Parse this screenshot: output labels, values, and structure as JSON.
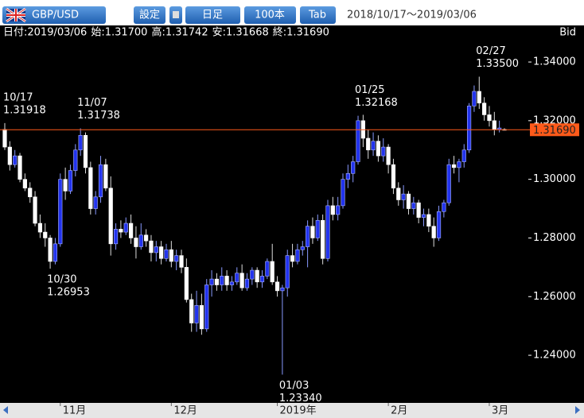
{
  "toolbar": {
    "symbol": "GBP/USD",
    "buttons": [
      "設定",
      "日足",
      "100本",
      "Tab"
    ],
    "range": "2018/10/17～2019/03/06"
  },
  "info": [
    "日付:2019/03/06",
    "始:1.31700",
    "高:1.31742",
    "安:1.31668",
    "終:1.31690"
  ],
  "price_type": "Bid",
  "chart_data": {
    "type": "candlestick",
    "up_color": "#2233ee",
    "down_color": "#ffffff",
    "candles": [
      [
        1.317,
        1.31918,
        1.31,
        1.311
      ],
      [
        1.311,
        1.313,
        1.303,
        1.305
      ],
      [
        1.305,
        1.31,
        1.304,
        1.308
      ],
      [
        1.308,
        1.309,
        1.299,
        1.3
      ],
      [
        1.3,
        1.302,
        1.296,
        1.297
      ],
      [
        1.297,
        1.299,
        1.292,
        1.294
      ],
      [
        1.294,
        1.296,
        1.284,
        1.285
      ],
      [
        1.285,
        1.288,
        1.28,
        1.282
      ],
      [
        1.282,
        1.285,
        1.277,
        1.28
      ],
      [
        1.28,
        1.281,
        1.26953,
        1.272
      ],
      [
        1.272,
        1.28,
        1.271,
        1.278
      ],
      [
        1.278,
        1.302,
        1.277,
        1.3
      ],
      [
        1.3,
        1.304,
        1.293,
        1.296
      ],
      [
        1.296,
        1.305,
        1.295,
        1.303
      ],
      [
        1.303,
        1.312,
        1.301,
        1.31
      ],
      [
        1.31,
        1.31738,
        1.308,
        1.315
      ],
      [
        1.315,
        1.316,
        1.302,
        1.304
      ],
      [
        1.304,
        1.306,
        1.288,
        1.29
      ],
      [
        1.29,
        1.296,
        1.288,
        1.294
      ],
      [
        1.294,
        1.308,
        1.292,
        1.305
      ],
      [
        1.305,
        1.307,
        1.296,
        1.297
      ],
      [
        1.297,
        1.301,
        1.274,
        1.278
      ],
      [
        1.278,
        1.285,
        1.276,
        1.283
      ],
      [
        1.283,
        1.286,
        1.28,
        1.282
      ],
      [
        1.282,
        1.287,
        1.281,
        1.285
      ],
      [
        1.285,
        1.288,
        1.278,
        1.28
      ],
      [
        1.28,
        1.284,
        1.273,
        1.277
      ],
      [
        1.277,
        1.285,
        1.276,
        1.281
      ],
      [
        1.281,
        1.283,
        1.277,
        1.279
      ],
      [
        1.279,
        1.281,
        1.272,
        1.275
      ],
      [
        1.275,
        1.279,
        1.272,
        1.277
      ],
      [
        1.277,
        1.279,
        1.271,
        1.273
      ],
      [
        1.273,
        1.278,
        1.272,
        1.276
      ],
      [
        1.276,
        1.279,
        1.27,
        1.272
      ],
      [
        1.272,
        1.276,
        1.269,
        1.274
      ],
      [
        1.274,
        1.276,
        1.268,
        1.27
      ],
      [
        1.27,
        1.273,
        1.258,
        1.259
      ],
      [
        1.259,
        1.261,
        1.248,
        1.251
      ],
      [
        1.251,
        1.262,
        1.248,
        1.257
      ],
      [
        1.257,
        1.261,
        1.247,
        1.249
      ],
      [
        1.249,
        1.266,
        1.248,
        1.264
      ],
      [
        1.264,
        1.269,
        1.26,
        1.266
      ],
      [
        1.266,
        1.268,
        1.262,
        1.264
      ],
      [
        1.264,
        1.27,
        1.262,
        1.267
      ],
      [
        1.267,
        1.269,
        1.262,
        1.264
      ],
      [
        1.264,
        1.267,
        1.262,
        1.265
      ],
      [
        1.265,
        1.27,
        1.264,
        1.268
      ],
      [
        1.268,
        1.271,
        1.262,
        1.263
      ],
      [
        1.263,
        1.268,
        1.262,
        1.266
      ],
      [
        1.266,
        1.27,
        1.264,
        1.269
      ],
      [
        1.269,
        1.27,
        1.263,
        1.265
      ],
      [
        1.265,
        1.269,
        1.263,
        1.267
      ],
      [
        1.267,
        1.273,
        1.266,
        1.272
      ],
      [
        1.272,
        1.278,
        1.264,
        1.265
      ],
      [
        1.265,
        1.267,
        1.26,
        1.262
      ],
      [
        1.262,
        1.264,
        1.2334,
        1.263
      ],
      [
        1.263,
        1.276,
        1.26,
        1.274
      ],
      [
        1.274,
        1.278,
        1.27,
        1.272
      ],
      [
        1.272,
        1.278,
        1.271,
        1.276
      ],
      [
        1.276,
        1.279,
        1.274,
        1.277
      ],
      [
        1.277,
        1.286,
        1.27,
        1.284
      ],
      [
        1.284,
        1.287,
        1.278,
        1.28
      ],
      [
        1.28,
        1.288,
        1.279,
        1.286
      ],
      [
        1.286,
        1.288,
        1.271,
        1.273
      ],
      [
        1.273,
        1.293,
        1.272,
        1.291
      ],
      [
        1.291,
        1.294,
        1.286,
        1.288
      ],
      [
        1.288,
        1.294,
        1.286,
        1.291
      ],
      [
        1.291,
        1.302,
        1.29,
        1.3
      ],
      [
        1.3,
        1.305,
        1.297,
        1.302
      ],
      [
        1.302,
        1.308,
        1.299,
        1.306
      ],
      [
        1.306,
        1.32168,
        1.305,
        1.32
      ],
      [
        1.32,
        1.322,
        1.311,
        1.314
      ],
      [
        1.314,
        1.317,
        1.307,
        1.31
      ],
      [
        1.31,
        1.316,
        1.308,
        1.313
      ],
      [
        1.313,
        1.315,
        1.306,
        1.308
      ],
      [
        1.308,
        1.314,
        1.306,
        1.311
      ],
      [
        1.311,
        1.312,
        1.302,
        1.305
      ],
      [
        1.305,
        1.307,
        1.295,
        1.297
      ],
      [
        1.297,
        1.299,
        1.291,
        1.293
      ],
      [
        1.293,
        1.298,
        1.29,
        1.295
      ],
      [
        1.295,
        1.296,
        1.288,
        1.29
      ],
      [
        1.29,
        1.294,
        1.288,
        1.292
      ],
      [
        1.292,
        1.293,
        1.285,
        1.287
      ],
      [
        1.287,
        1.29,
        1.284,
        1.288
      ],
      [
        1.288,
        1.29,
        1.282,
        1.284
      ],
      [
        1.284,
        1.287,
        1.277,
        1.28
      ],
      [
        1.28,
        1.291,
        1.279,
        1.289
      ],
      [
        1.289,
        1.293,
        1.287,
        1.292
      ],
      [
        1.292,
        1.307,
        1.291,
        1.305
      ],
      [
        1.305,
        1.308,
        1.302,
        1.304
      ],
      [
        1.304,
        1.307,
        1.299,
        1.306
      ],
      [
        1.306,
        1.312,
        1.304,
        1.31
      ],
      [
        1.31,
        1.326,
        1.309,
        1.325
      ],
      [
        1.325,
        1.332,
        1.323,
        1.33
      ],
      [
        1.33,
        1.335,
        1.324,
        1.326
      ],
      [
        1.326,
        1.328,
        1.32,
        1.322
      ],
      [
        1.322,
        1.325,
        1.318,
        1.32
      ],
      [
        1.32,
        1.323,
        1.315,
        1.317
      ],
      [
        1.317,
        1.32,
        1.316,
        1.3175
      ],
      [
        1.317,
        1.31742,
        1.31668,
        1.3169
      ]
    ],
    "xlim": [
      0,
      99
    ],
    "xticks": [
      {
        "value": 11,
        "label": "11月"
      },
      {
        "value": 33,
        "label": "12月"
      },
      {
        "value": 54,
        "label": "2019年"
      },
      {
        "value": 76,
        "label": "2月"
      },
      {
        "value": 96,
        "label": "3月"
      }
    ],
    "ylim": [
      1.2243,
      1.3476
    ],
    "yticks": [
      {
        "value": 1.24,
        "label": "1.24000"
      },
      {
        "value": 1.26,
        "label": "1.26000"
      },
      {
        "value": 1.28,
        "label": "1.28000"
      },
      {
        "value": 1.3,
        "label": "1.30000"
      },
      {
        "value": 1.32,
        "label": "1.32000"
      },
      {
        "value": 1.34,
        "label": "1.34000"
      }
    ],
    "annotations": [
      {
        "x": 0,
        "date": "10/17",
        "value": 1.31918,
        "label": "1.31918"
      },
      {
        "x": 9,
        "date": "10/30",
        "value": 1.26953,
        "label": "1.26953"
      },
      {
        "x": 15,
        "date": "11/07",
        "value": 1.31738,
        "label": "1.31738"
      },
      {
        "x": 55,
        "date": "01/03",
        "value": 1.2334,
        "label": "1.23340"
      },
      {
        "x": 70,
        "date": "01/25",
        "value": 1.32168,
        "label": "1.32168"
      },
      {
        "x": 94,
        "date": "02/27",
        "value": 1.335,
        "label": "1.33500"
      }
    ],
    "current": {
      "value": 1.3169,
      "label": "1.31690",
      "color": "#ff5a1a"
    }
  }
}
